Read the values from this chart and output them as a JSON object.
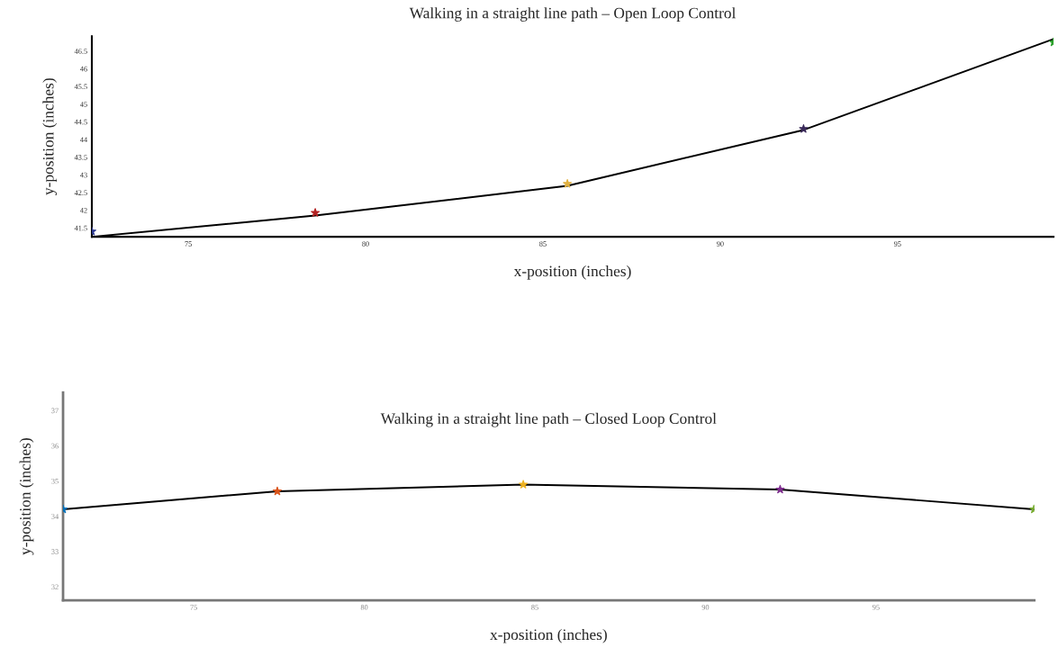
{
  "chart_data": [
    {
      "type": "line",
      "title": "Walking in a straight line path – Open Loop Control",
      "xlabel": "x-position (inches)",
      "ylabel": "y-position (inches)",
      "xlim": [
        72.28,
        99.4
      ],
      "ylim": [
        41.25,
        46.92
      ],
      "xticks": [
        75,
        80,
        85,
        90,
        95
      ],
      "yticks": [
        41.5,
        42,
        42.5,
        43,
        43.5,
        44,
        44.5,
        45,
        45.5,
        46,
        46.5
      ],
      "grid": false,
      "legend": false,
      "series": [
        {
          "color": "#000000",
          "marker": "none",
          "x": [
            72.28,
            78.58,
            85.69,
            92.35,
            99.4
          ],
          "values": [
            41.25,
            41.85,
            42.69,
            44.27,
            46.84
          ]
        },
        {
          "type": "scatter",
          "marker": "star",
          "x": [
            72.28,
            78.58,
            85.69,
            92.35,
            99.4
          ],
          "values": [
            41.4,
            41.93,
            42.75,
            44.3,
            46.75
          ],
          "colors": [
            "#2b3990",
            "#b22222",
            "#e0b040",
            "#3a2a5a",
            "#2ca02c"
          ]
        }
      ]
    },
    {
      "type": "line",
      "title": "Walking in a straight line path – Closed Loop Control",
      "xlabel": "x-position (inches)",
      "ylabel": "y-position (inches)",
      "xlim": [
        71.17,
        99.64
      ],
      "ylim": [
        31.62,
        37.51
      ],
      "xticks": [
        75,
        80,
        85,
        90,
        95
      ],
      "yticks": [
        32,
        33,
        34,
        35,
        36,
        37
      ],
      "grid": false,
      "legend": false,
      "series": [
        {
          "color": "#000000",
          "marker": "none",
          "x": [
            71.17,
            77.45,
            84.66,
            92.19,
            99.63
          ],
          "values": [
            34.2,
            34.71,
            34.9,
            34.76,
            34.2
          ]
        },
        {
          "type": "scatter",
          "marker": "star",
          "x": [
            71.17,
            77.45,
            84.66,
            92.19,
            99.63
          ],
          "values": [
            34.2,
            34.71,
            34.9,
            34.76,
            34.2
          ],
          "colors": [
            "#0072bd",
            "#d95319",
            "#edb120",
            "#7e2f8e",
            "#77ac30"
          ]
        }
      ]
    }
  ]
}
